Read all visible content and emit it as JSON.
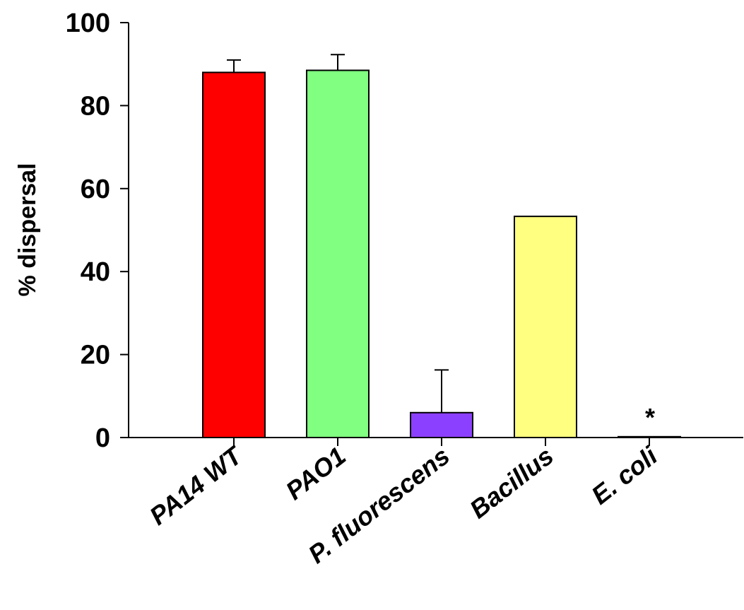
{
  "chart_data": {
    "type": "bar",
    "title": "",
    "xlabel": "",
    "ylabel": "% dispersal",
    "ylim": [
      0,
      100
    ],
    "yticks": [
      0,
      20,
      40,
      60,
      80,
      100
    ],
    "grid": false,
    "categories": [
      "PA14 WT",
      "PAO1",
      "P. fluorescens",
      "Bacillus",
      "E. coli"
    ],
    "values": [
      88,
      88.5,
      6,
      53.3,
      0.2
    ],
    "errors": [
      3,
      3.8,
      10.3,
      null,
      null
    ],
    "colors": [
      "#ff0000",
      "#80ff80",
      "#8c40ff",
      "#ffff80",
      "#ffffff"
    ],
    "annotations": [
      {
        "category": "E. coli",
        "text": "*"
      }
    ]
  }
}
